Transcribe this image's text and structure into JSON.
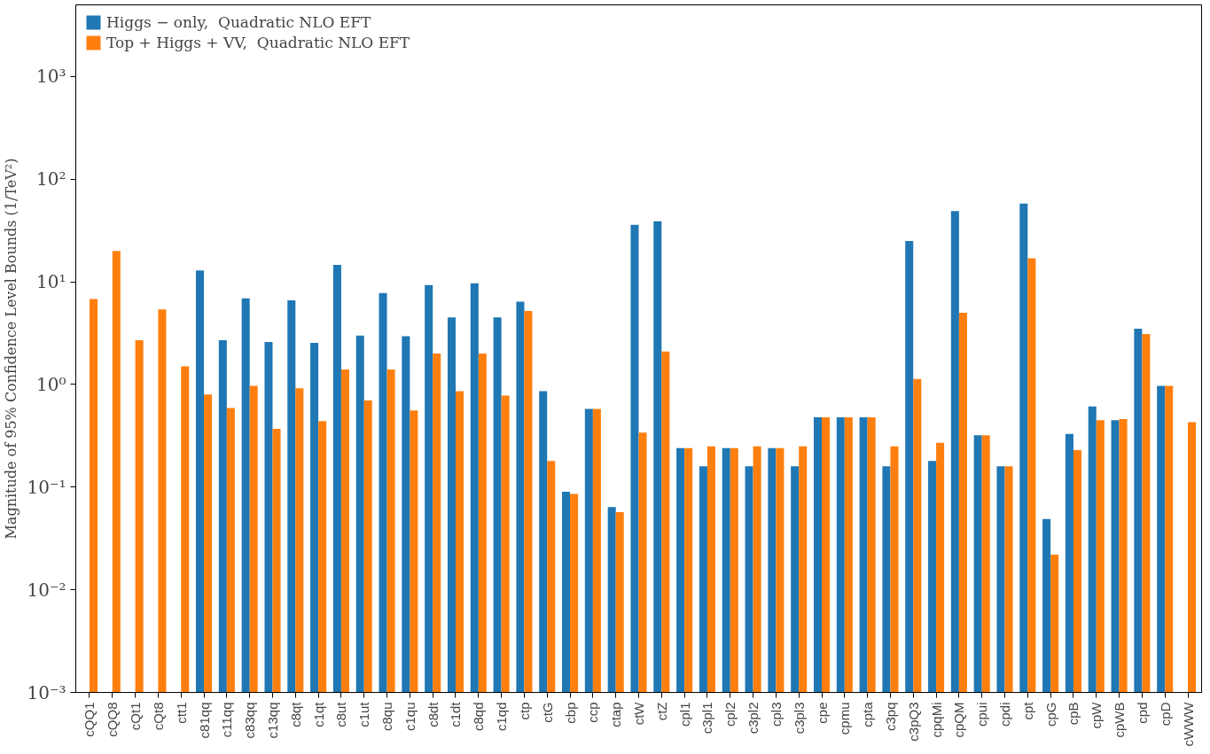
{
  "chart_data": {
    "type": "bar",
    "ylabel": "Magnitude of 95% Confidence Level Bounds (1/TeV²)",
    "categories": [
      "cQQ1",
      "cQQ8",
      "cQt1",
      "cQt8",
      "ctt1",
      "c81qq",
      "c11qq",
      "c83qq",
      "c13qq",
      "c8qt",
      "c1qt",
      "c8ut",
      "c1ut",
      "c8qu",
      "c1qu",
      "c8dt",
      "c1dt",
      "c8qd",
      "c1qd",
      "ctp",
      "ctG",
      "cbp",
      "ccp",
      "ctap",
      "ctW",
      "ctZ",
      "cpl1",
      "c3pl1",
      "cpl2",
      "c3pl2",
      "cpl3",
      "c3pl3",
      "cpe",
      "cpmu",
      "cpta",
      "c3pq",
      "c3pQ3",
      "cpqMi",
      "cpQM",
      "cpui",
      "cpdi",
      "cpt",
      "cpG",
      "cpB",
      "cpW",
      "cpWB",
      "cpd",
      "cpD",
      "cWWW"
    ],
    "series": [
      {
        "name": "Higgs − only,  Quadratic NLO EFT",
        "color": "#1f77b4",
        "values": [
          null,
          null,
          null,
          null,
          null,
          12.9,
          2.7,
          6.9,
          2.6,
          6.6,
          2.55,
          14.6,
          3.0,
          7.8,
          2.95,
          9.3,
          4.5,
          9.7,
          4.5,
          6.4,
          0.86,
          0.09,
          0.58,
          0.064,
          36,
          39,
          0.24,
          0.16,
          0.24,
          0.16,
          0.24,
          0.16,
          0.48,
          0.48,
          0.48,
          0.16,
          25,
          0.18,
          49,
          0.32,
          0.16,
          58,
          0.049,
          0.33,
          0.61,
          0.45,
          3.5,
          0.97,
          null
        ]
      },
      {
        "name": "Top + Higgs + VV,  Quadratic NLO EFT",
        "color": "#ff7f0e",
        "values": [
          6.8,
          20,
          2.7,
          5.4,
          1.5,
          0.8,
          0.59,
          0.97,
          0.37,
          0.92,
          0.44,
          1.4,
          0.7,
          1.4,
          0.56,
          2.0,
          0.86,
          2.0,
          0.78,
          5.2,
          0.18,
          0.086,
          0.58,
          0.057,
          0.34,
          2.1,
          0.24,
          0.25,
          0.24,
          0.25,
          0.24,
          0.25,
          0.48,
          0.48,
          0.48,
          0.25,
          1.13,
          0.27,
          5.0,
          0.32,
          0.16,
          17,
          0.022,
          0.23,
          0.45,
          0.46,
          3.1,
          0.97,
          0.43
        ]
      }
    ],
    "log": "y",
    "ylim": [
      0.001,
      5000
    ],
    "yticks": [
      {
        "value": 0.001,
        "label": "10⁻³"
      },
      {
        "value": 0.01,
        "label": "10⁻²"
      },
      {
        "value": 0.1,
        "label": "10⁻¹"
      },
      {
        "value": 1,
        "label": "10⁰"
      },
      {
        "value": 10,
        "label": "10¹"
      },
      {
        "value": 100,
        "label": "10²"
      },
      {
        "value": 1000,
        "label": "10³"
      }
    ],
    "legend": "top left"
  }
}
